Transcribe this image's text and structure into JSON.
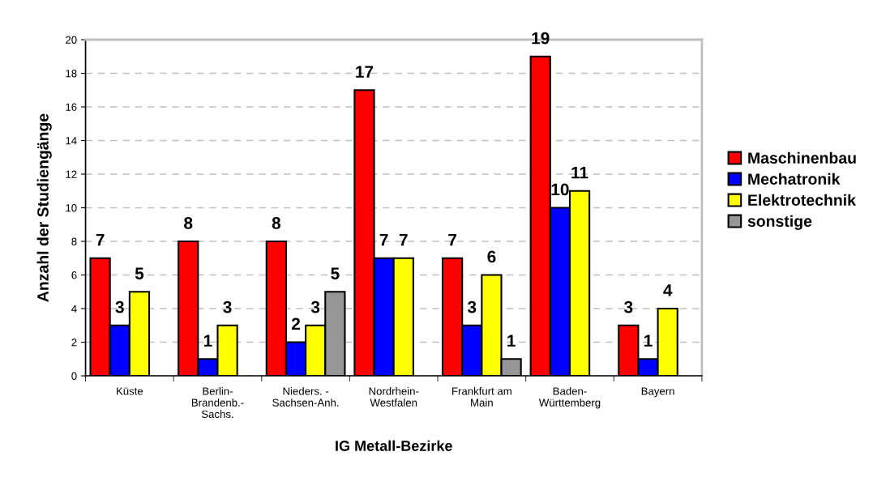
{
  "chart_data": {
    "type": "bar",
    "xlabel": "IG Metall-Bezirke",
    "ylabel": "Anzahl der Studiengänge",
    "categories": [
      "Küste",
      "Berlin-\nBrandenb.-\nSachs.",
      "Nieders. -\nSachsen-Anh.",
      "Nordrhein-\nWestfalen",
      "Frankfurt am\nMain",
      "Baden-\nWürttemberg",
      "Bayern"
    ],
    "series": [
      {
        "name": "Maschinenbau",
        "color": "#ff0000",
        "values": [
          7,
          8,
          8,
          17,
          7,
          19,
          3
        ]
      },
      {
        "name": "Mechatronik",
        "color": "#0000ff",
        "values": [
          3,
          1,
          2,
          7,
          3,
          10,
          1
        ]
      },
      {
        "name": "Elektrotechnik",
        "color": "#ffff00",
        "values": [
          5,
          3,
          3,
          7,
          6,
          11,
          4
        ]
      },
      {
        "name": "sonstige",
        "color": "#969696",
        "values": [
          null,
          null,
          5,
          null,
          1,
          null,
          null
        ]
      }
    ],
    "ylim": [
      0,
      20
    ],
    "yticks": [
      0,
      2,
      4,
      6,
      8,
      10,
      12,
      14,
      16,
      18,
      20
    ],
    "grid": "y",
    "legend": "right",
    "data_labels": true
  }
}
